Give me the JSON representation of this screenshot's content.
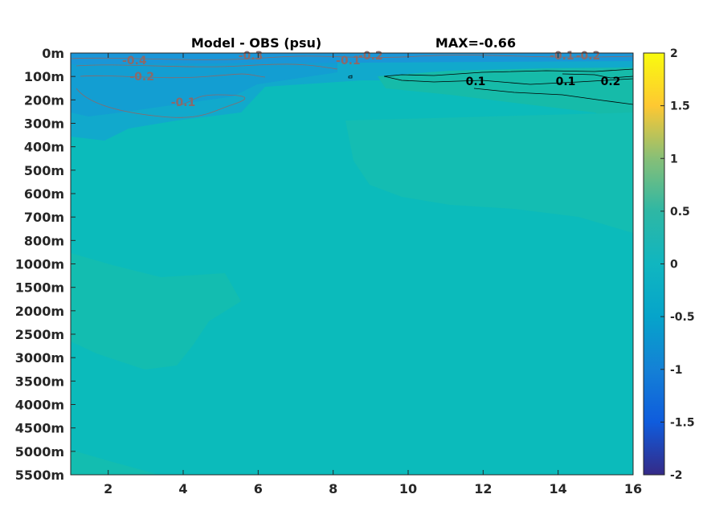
{
  "chart_data": {
    "type": "heatmap",
    "title": "Model - OBS (psu)",
    "max_label": "MAX=-0.66",
    "xlabel": "",
    "ylabel": "",
    "x_ticks": [
      "2",
      "4",
      "6",
      "8",
      "10",
      "12",
      "14",
      "16"
    ],
    "x_tick_values": [
      2,
      4,
      6,
      8,
      10,
      12,
      14,
      16
    ],
    "xlim": [
      1,
      16
    ],
    "depth_ticks": [
      "0m",
      "100m",
      "200m",
      "300m",
      "400m",
      "500m",
      "600m",
      "700m",
      "800m",
      "1000m",
      "1500m",
      "2000m",
      "2500m",
      "3000m",
      "3500m",
      "4000m",
      "4500m",
      "5000m",
      "5500m"
    ],
    "colorbar": {
      "ticks": [
        "2",
        "1.5",
        "1",
        "0.5",
        "0",
        "-0.5",
        "-1",
        "-1.5",
        "-2"
      ],
      "tick_values": [
        2,
        1.5,
        1,
        0.5,
        0,
        -0.5,
        -1,
        -1.5,
        -2
      ],
      "clim": [
        -2,
        2
      ],
      "colormap": "parula",
      "colors": [
        "#352a87",
        "#0f5cdd",
        "#1481d6",
        "#06a4ca",
        "#2eb7a4",
        "#87bf77",
        "#d1bb59",
        "#fec832",
        "#f9fb0e"
      ]
    },
    "contour_labels": [
      {
        "text": "-0.4",
        "x": 2.7,
        "depth": "0m-100m",
        "color": "#8a6a6a"
      },
      {
        "text": "-0.2",
        "x": 2.9,
        "depth": "100m",
        "color": "#8a6a6a"
      },
      {
        "text": "-0.3",
        "x": 5.8,
        "depth": "0m",
        "color": "#8a6a6a"
      },
      {
        "text": "-0.1",
        "x": 4.0,
        "depth": "200m",
        "color": "#8a6a6a"
      },
      {
        "text": "-0.1",
        "x": 8.4,
        "depth": "0m-100m",
        "color": "#8a6a6a"
      },
      {
        "text": "-0.2",
        "x": 9.0,
        "depth": "0m",
        "color": "#8a6a6a"
      },
      {
        "text": "-0.1",
        "x": 14.1,
        "depth": "0m",
        "color": "#8a6a6a"
      },
      {
        "text": "-0.2",
        "x": 14.8,
        "depth": "0m",
        "color": "#8a6a6a"
      },
      {
        "text": "0.1",
        "x": 11.8,
        "depth": "100m",
        "color": "#000000"
      },
      {
        "text": "0.1",
        "x": 14.2,
        "depth": "100m",
        "color": "#000000"
      },
      {
        "text": "0.2",
        "x": 15.4,
        "depth": "100m",
        "color": "#000000"
      }
    ],
    "field_description_values": {
      "surface_min": -0.4,
      "deep_bulk": 0.0,
      "upper_right_max": 0.2
    }
  }
}
